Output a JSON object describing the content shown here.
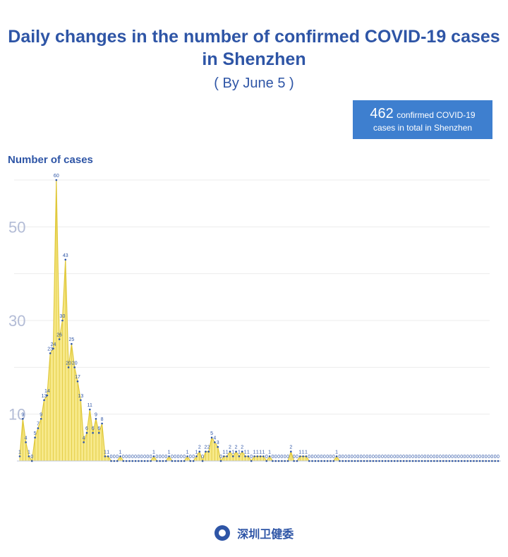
{
  "header": {
    "title_line1": "Daily changes in the number of confirmed COVID-19 cases",
    "title_line2": "in Shenzhen",
    "subtitle": "( By June 5 )"
  },
  "total": {
    "number": "462",
    "label_line1": "confirmed COVID-19",
    "label_line2": "cases in total in Shenzhen"
  },
  "footer": {
    "org_name": "深圳卫健委",
    "logo_icon": "health-commission-logo-icon"
  },
  "colors": {
    "accent": "#2e55a6",
    "fill": "#f7e98a",
    "line": "#e0c83a",
    "marker": "#2e55a6",
    "box": "#3e7fcf"
  },
  "chart_data": {
    "type": "area",
    "ylabel": "Number of cases",
    "yticks": [
      10,
      30,
      50
    ],
    "ylim": [
      0,
      60
    ],
    "grid": true,
    "values": [
      1,
      9,
      4,
      1,
      0,
      5,
      7,
      9,
      13,
      14,
      23,
      24,
      60,
      26,
      30,
      43,
      20,
      25,
      20,
      17,
      13,
      4,
      6,
      11,
      6,
      9,
      6,
      8,
      1,
      1,
      0,
      0,
      0,
      1,
      0,
      0,
      0,
      0,
      0,
      0,
      0,
      0,
      0,
      0,
      1,
      0,
      0,
      0,
      0,
      1,
      0,
      0,
      0,
      0,
      0,
      1,
      0,
      0,
      1,
      2,
      0,
      2,
      2,
      5,
      4,
      3,
      0,
      1,
      1,
      2,
      1,
      2,
      1,
      2,
      1,
      1,
      0,
      1,
      1,
      1,
      1,
      0,
      1,
      0,
      0,
      0,
      0,
      0,
      0,
      2,
      0,
      0,
      1,
      1,
      1,
      0,
      0,
      0,
      0,
      0,
      0,
      0,
      0,
      0,
      1,
      0,
      0,
      0,
      0,
      0,
      0,
      0,
      0,
      0,
      0,
      0,
      0,
      0,
      0,
      0,
      0,
      0,
      0,
      0,
      0,
      0,
      0,
      0,
      0,
      0,
      0,
      0,
      0,
      0,
      0,
      0,
      0,
      0,
      0,
      0,
      0,
      0,
      0,
      0,
      0,
      0,
      0,
      0,
      0,
      0,
      0,
      0,
      0,
      0,
      0,
      0,
      0,
      0
    ]
  }
}
